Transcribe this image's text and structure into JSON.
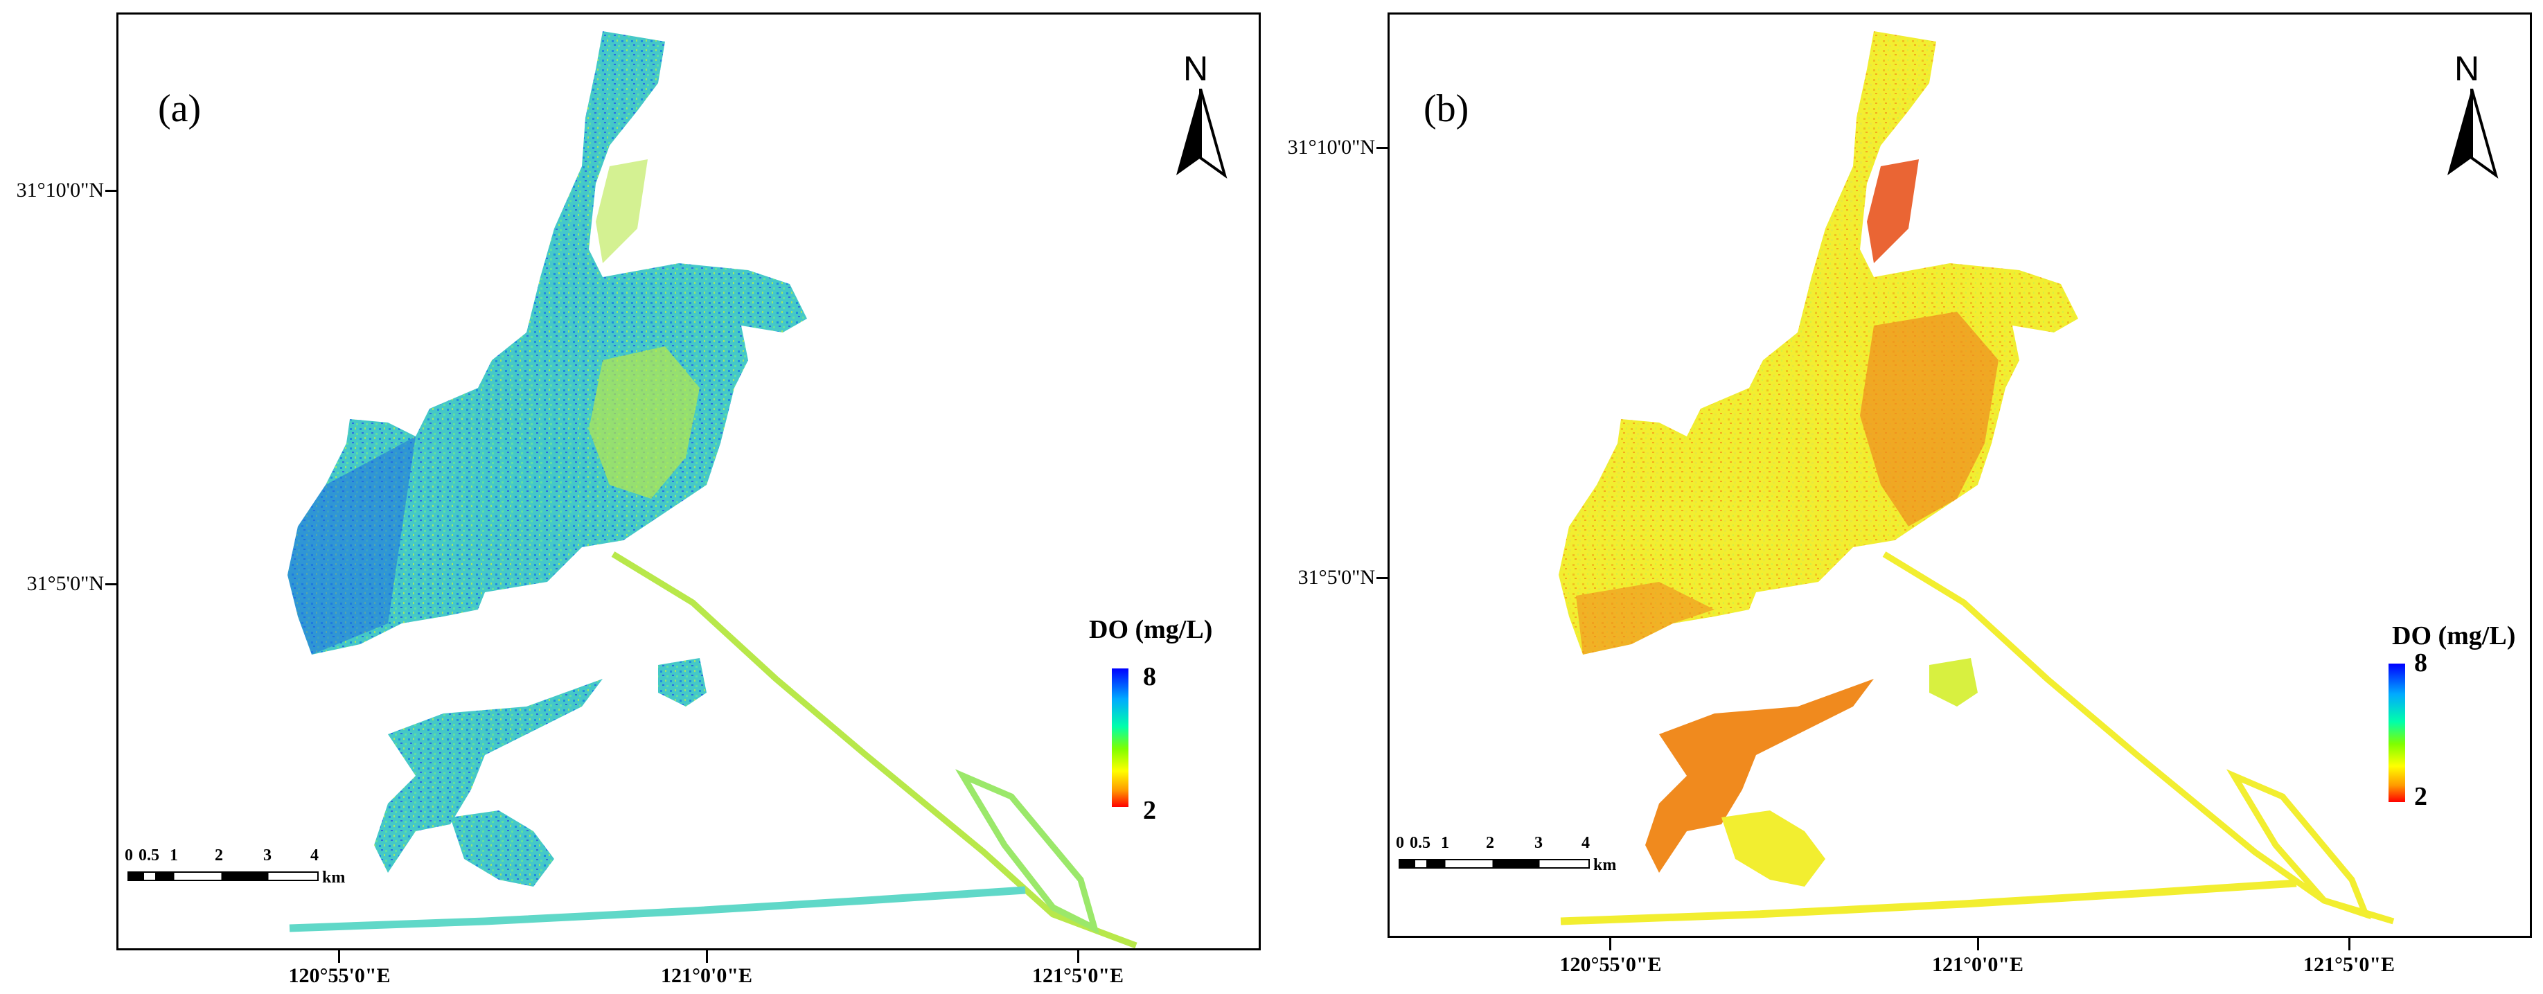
{
  "panels": [
    {
      "label": "(a)",
      "lat_labels": [
        "31°10'0\"N",
        "31°5'0\"N"
      ],
      "lon_labels": [
        "120°55'0\"E",
        "121°0'0\"E",
        "121°5'0\"E"
      ],
      "north": "N",
      "legend": {
        "title": "DO (mg/L)",
        "max": "8",
        "min": "2"
      },
      "scale": {
        "ticks": [
          "0",
          "0.5",
          "1",
          "2",
          "3",
          "4"
        ],
        "unit": "km"
      },
      "colors": {
        "main": "#45c8c8",
        "accent": "#1e5fd8",
        "secondary": "#b8e84a",
        "mud": "#e8c83a"
      }
    },
    {
      "label": "(b)",
      "lat_labels": [
        "31°10'0\"N",
        "31°5'0\"N"
      ],
      "lon_labels": [
        "120°55'0\"E",
        "121°0'0\"E",
        "121°5'0\"E"
      ],
      "north": "N",
      "legend": {
        "title": "DO (mg/L)",
        "max": "8",
        "min": "2"
      },
      "scale": {
        "ticks": [
          "0",
          "0.5",
          "1",
          "2",
          "3",
          "4"
        ],
        "unit": "km"
      },
      "colors": {
        "main": "#f2ee30",
        "accent": "#f08a1e",
        "secondary": "#e64a10",
        "mud": "#7fdc9a"
      }
    }
  ]
}
